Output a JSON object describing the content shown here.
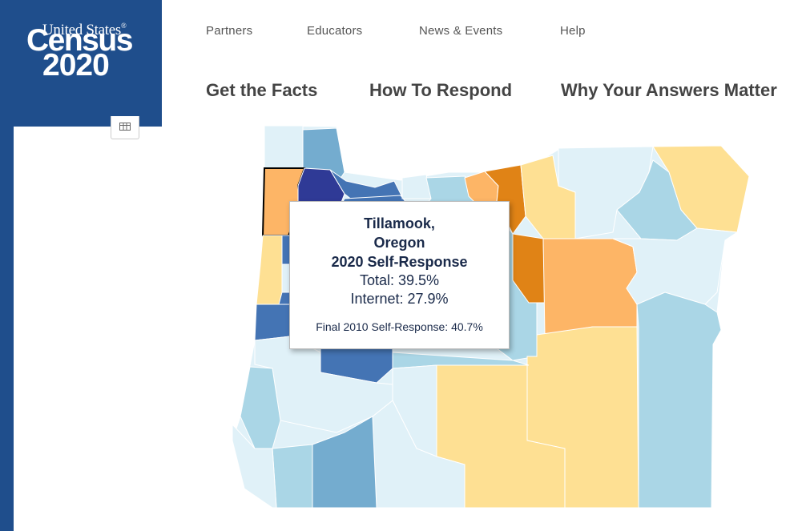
{
  "logo": {
    "line1": "United States",
    "line2": "Census",
    "line3": "2020",
    "reg": "®"
  },
  "nav_top": [
    "Partners",
    "Educators",
    "News & Events",
    "Help"
  ],
  "nav_main": [
    "Get the Facts",
    "How To Respond",
    "Why Your Answers Matter"
  ],
  "map": {
    "region": "Oregon",
    "selected_county": "Tillamook",
    "colors": {
      "very_light_blue": "#e0f1f8",
      "light_blue": "#aad6e6",
      "mid_blue": "#74accf",
      "blue": "#4474b4",
      "dark_blue": "#2f3a96",
      "light_yellow": "#fee093",
      "light_orange": "#fdb566",
      "orange": "#e08316"
    }
  },
  "tooltip": {
    "county": "Tillamook,",
    "state": "Oregon",
    "heading": "2020 Self-Response",
    "total": "Total: 39.5%",
    "internet": "Internet: 27.9%",
    "final_2010": "Final 2010 Self-Response: 40.7%"
  }
}
